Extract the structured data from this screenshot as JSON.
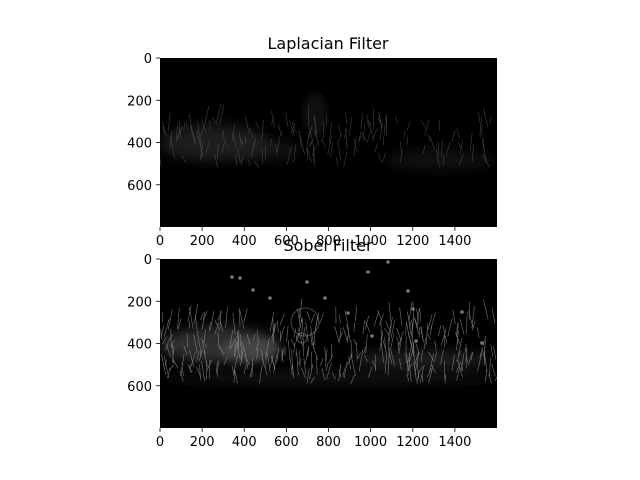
{
  "chart_data": [
    {
      "type": "heatmap",
      "title": "Laplacian Filter",
      "colormap": "gray",
      "xlim": [
        0,
        1600
      ],
      "ylim": [
        800,
        0
      ],
      "x_ticks": [
        "0",
        "200",
        "400",
        "600",
        "800",
        "1000",
        "1200",
        "1400"
      ],
      "y_ticks": [
        "0",
        "200",
        "400",
        "600"
      ]
    },
    {
      "type": "heatmap",
      "title": "Sobel Filter",
      "colormap": "gray",
      "xlim": [
        0,
        1600
      ],
      "ylim": [
        800,
        0
      ],
      "x_ticks": [
        "0",
        "200",
        "400",
        "600",
        "800",
        "1000",
        "1200",
        "1400"
      ],
      "y_ticks": [
        "0",
        "200",
        "400",
        "600"
      ]
    }
  ]
}
